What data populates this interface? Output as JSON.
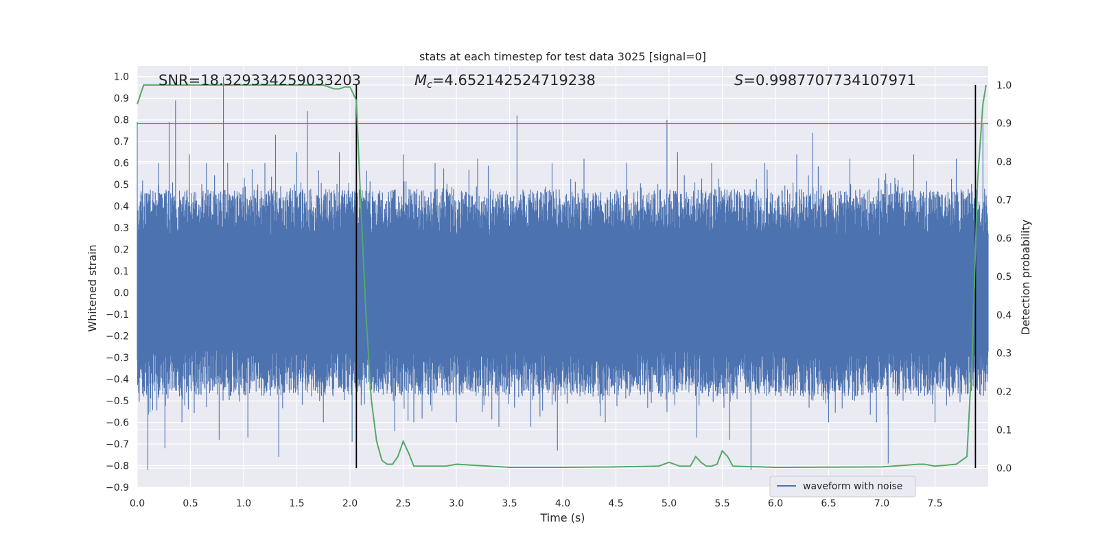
{
  "chart_data": {
    "type": "line",
    "title": "stats at each timestep for test data 3025 [signal=0]",
    "xlabel": "Time (s)",
    "ylabel_left": "Whitened strain",
    "ylabel_right": "Detection probability",
    "xlim": [
      0.0,
      8.0
    ],
    "ylim_left": [
      -0.9,
      1.05
    ],
    "ylim_right": [
      -0.05,
      1.05
    ],
    "x_ticks": [
      "0.0",
      "0.5",
      "1.0",
      "1.5",
      "2.0",
      "2.5",
      "3.0",
      "3.5",
      "4.0",
      "4.5",
      "5.0",
      "5.5",
      "6.0",
      "6.5",
      "7.0",
      "7.5"
    ],
    "y_ticks_left": [
      "1.0",
      "0.9",
      "0.8",
      "0.7",
      "0.6",
      "0.5",
      "0.4",
      "0.3",
      "0.2",
      "0.1",
      "0.0",
      "−0.1",
      "−0.2",
      "−0.3",
      "−0.4",
      "−0.5",
      "−0.6",
      "−0.7",
      "−0.8",
      "−0.9"
    ],
    "y_ticks_right": [
      "1.0",
      "0.9",
      "0.8",
      "0.7",
      "0.6",
      "0.5",
      "0.4",
      "0.3",
      "0.2",
      "0.1",
      "0.0"
    ],
    "grid": true,
    "legend_position": "lower-right",
    "annotations": {
      "snr": "SNR=18.329334259033203",
      "mc_symbol": "M",
      "mc_sub": "c",
      "mc_value": "=4.652142524719238",
      "s_symbol": "S",
      "s_value": "=0.9987707734107971"
    },
    "threshold_probability": 0.9,
    "vertical_lines_x": [
      2.06,
      7.88
    ],
    "series": [
      {
        "name": "waveform with noise",
        "axis": "left",
        "color": "#4c72b0",
        "envelope_upper": 0.48,
        "envelope_lower": -0.48,
        "peaks": [
          [
            0.0,
            0.79
          ],
          [
            0.05,
            0.52
          ],
          [
            0.1,
            -0.82
          ],
          [
            0.2,
            0.6
          ],
          [
            0.26,
            -0.72
          ],
          [
            0.3,
            0.79
          ],
          [
            0.36,
            0.89
          ],
          [
            0.42,
            -0.6
          ],
          [
            0.49,
            0.64
          ],
          [
            0.65,
            0.6
          ],
          [
            0.77,
            -0.68
          ],
          [
            0.81,
            1.0
          ],
          [
            0.85,
            0.6
          ],
          [
            1.04,
            -0.67
          ],
          [
            1.2,
            0.6
          ],
          [
            1.3,
            0.73
          ],
          [
            1.33,
            -0.76
          ],
          [
            1.5,
            0.65
          ],
          [
            1.6,
            0.84
          ],
          [
            1.75,
            -0.6
          ],
          [
            1.9,
            0.65
          ],
          [
            2.02,
            -0.69
          ],
          [
            2.42,
            -0.64
          ],
          [
            2.5,
            0.64
          ],
          [
            2.6,
            -0.6
          ],
          [
            2.8,
            0.6
          ],
          [
            3.0,
            -0.6
          ],
          [
            3.2,
            0.62
          ],
          [
            3.4,
            -0.62
          ],
          [
            3.57,
            0.82
          ],
          [
            3.7,
            -0.62
          ],
          [
            3.9,
            0.6
          ],
          [
            3.95,
            -0.73
          ],
          [
            4.2,
            0.62
          ],
          [
            4.4,
            -0.6
          ],
          [
            4.6,
            0.6
          ],
          [
            4.98,
            0.8
          ],
          [
            5.08,
            0.65
          ],
          [
            5.26,
            -0.67
          ],
          [
            5.4,
            0.6
          ],
          [
            5.57,
            -0.68
          ],
          [
            5.77,
            -0.82
          ],
          [
            5.9,
            0.6
          ],
          [
            6.2,
            0.64
          ],
          [
            6.35,
            0.74
          ],
          [
            6.5,
            -0.6
          ],
          [
            6.7,
            0.62
          ],
          [
            6.95,
            -0.6
          ],
          [
            7.06,
            -0.79
          ],
          [
            7.3,
            0.64
          ],
          [
            7.5,
            -0.6
          ],
          [
            7.7,
            0.62
          ],
          [
            7.95,
            0.78
          ]
        ]
      },
      {
        "name": "detection probability",
        "axis": "right",
        "color": "#55a868",
        "x": [
          0.0,
          0.06,
          0.5,
          1.0,
          1.5,
          1.75,
          1.8,
          1.85,
          1.9,
          1.95,
          2.0,
          2.06,
          2.1,
          2.15,
          2.2,
          2.25,
          2.3,
          2.35,
          2.4,
          2.45,
          2.5,
          2.55,
          2.6,
          2.7,
          2.9,
          3.0,
          3.5,
          4.0,
          4.5,
          4.9,
          5.0,
          5.1,
          5.2,
          5.25,
          5.3,
          5.35,
          5.4,
          5.45,
          5.5,
          5.55,
          5.6,
          6.0,
          7.0,
          7.35,
          7.4,
          7.5,
          7.7,
          7.8,
          7.85,
          7.9,
          7.95,
          7.98
        ],
        "y": [
          0.95,
          1.0,
          1.0,
          1.0,
          1.0,
          1.0,
          0.995,
          0.99,
          0.99,
          0.995,
          0.995,
          0.96,
          0.7,
          0.4,
          0.18,
          0.07,
          0.02,
          0.01,
          0.01,
          0.03,
          0.07,
          0.04,
          0.005,
          0.005,
          0.005,
          0.01,
          0.002,
          0.002,
          0.003,
          0.005,
          0.015,
          0.005,
          0.005,
          0.03,
          0.015,
          0.005,
          0.005,
          0.01,
          0.045,
          0.03,
          0.005,
          0.002,
          0.003,
          0.01,
          0.01,
          0.005,
          0.01,
          0.03,
          0.3,
          0.75,
          0.95,
          1.0
        ]
      }
    ]
  }
}
